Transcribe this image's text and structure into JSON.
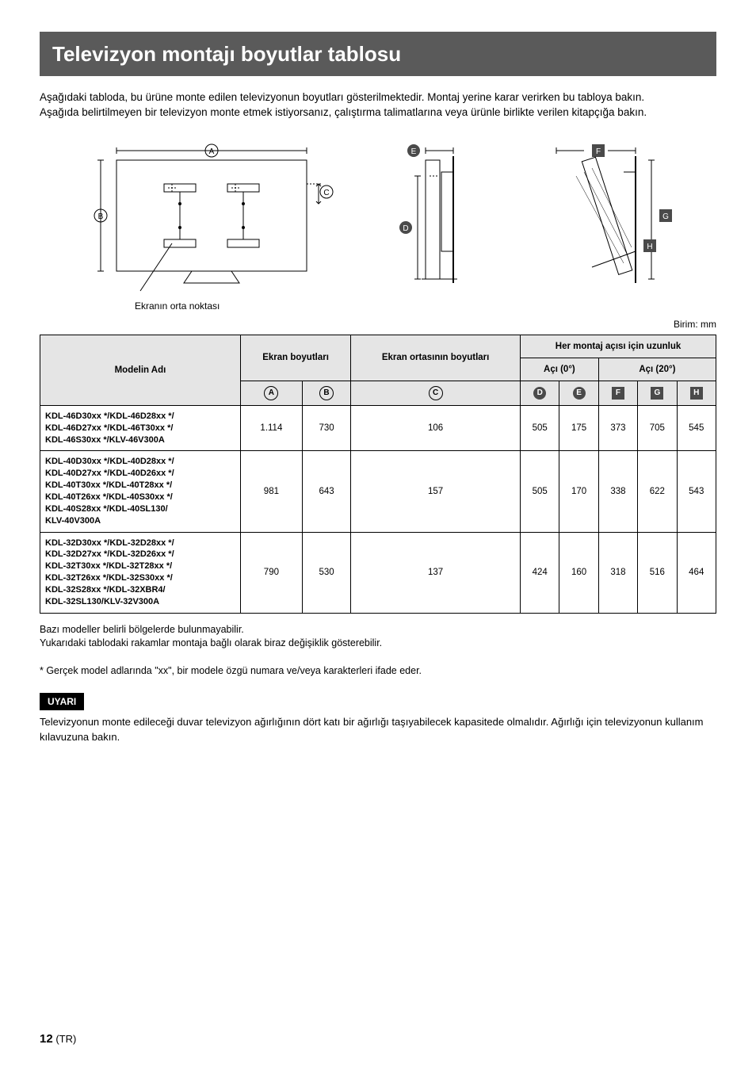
{
  "title": "Televizyon montajı boyutlar tablosu",
  "intro1": "Aşağıdaki tabloda, bu ürüne monte edilen televizyonun boyutları gösterilmektedir. Montaj yerine karar verirken bu tabloya bakın.",
  "intro2": "Aşağıda belirtilmeyen bir televizyon monte etmek istiyorsanız, çalıştırma talimatlarına veya ürünle birlikte verilen kitapçığa bakın.",
  "caption": "Ekranın orta noktası",
  "unit": "Birim: mm",
  "labels": {
    "A": "A",
    "B": "B",
    "C": "C",
    "D": "D",
    "E": "E",
    "F": "F",
    "G": "G",
    "H": "H"
  },
  "headers": {
    "model": "Modelin Adı",
    "screen": "Ekran boyutları",
    "center": "Ekran ortasının boyutları",
    "length": "Her montaj açısı için uzunluk",
    "angle0": "Açı (0°)",
    "angle20": "Açı (20°)"
  },
  "rows": [
    {
      "model": "KDL-46D30xx */KDL-46D28xx */\nKDL-46D27xx */KDL-46T30xx */\nKDL-46S30xx */KLV-46V300A",
      "A": "1.114",
      "B": "730",
      "C": "106",
      "D": "505",
      "E": "175",
      "F": "373",
      "G": "705",
      "H": "545"
    },
    {
      "model": "KDL-40D30xx */KDL-40D28xx */\nKDL-40D27xx */KDL-40D26xx */\nKDL-40T30xx */KDL-40T28xx */\nKDL-40T26xx */KDL-40S30xx */\nKDL-40S28xx */KDL-40SL130/\nKLV-40V300A",
      "A": "981",
      "B": "643",
      "C": "157",
      "D": "505",
      "E": "170",
      "F": "338",
      "G": "622",
      "H": "543"
    },
    {
      "model": "KDL-32D30xx */KDL-32D28xx */\nKDL-32D27xx */KDL-32D26xx */\nKDL-32T30xx */KDL-32T28xx */\nKDL-32T26xx */KDL-32S30xx */\nKDL-32S28xx */KDL-32XBR4/\nKDL-32SL130/KLV-32V300A",
      "A": "790",
      "B": "530",
      "C": "137",
      "D": "424",
      "E": "160",
      "F": "318",
      "G": "516",
      "H": "464"
    }
  ],
  "note1": "Bazı modeller belirli bölgelerde bulunmayabilir.",
  "note2": "Yukarıdaki tablodaki rakamlar montaja bağlı olarak biraz değişiklik gösterebilir.",
  "note3": "*   Gerçek model adlarında \"xx\", bir modele özgü numara ve/veya karakterleri ifade eder.",
  "warnLabel": "UYARI",
  "warnText": "Televizyonun monte edileceği duvar televizyon ağırlığının dört katı bir ağırlığı taşıyabilecek kapasitede olmalıdır.  Ağırlığı için televizyonun kullanım kılavuzuna bakın.",
  "pagenum": "12",
  "pagelang": "(TR)",
  "colors": {
    "titleBg": "#5a5a5a",
    "headerBg": "#e5e5e5",
    "darkChip": "#4a4a4a"
  }
}
